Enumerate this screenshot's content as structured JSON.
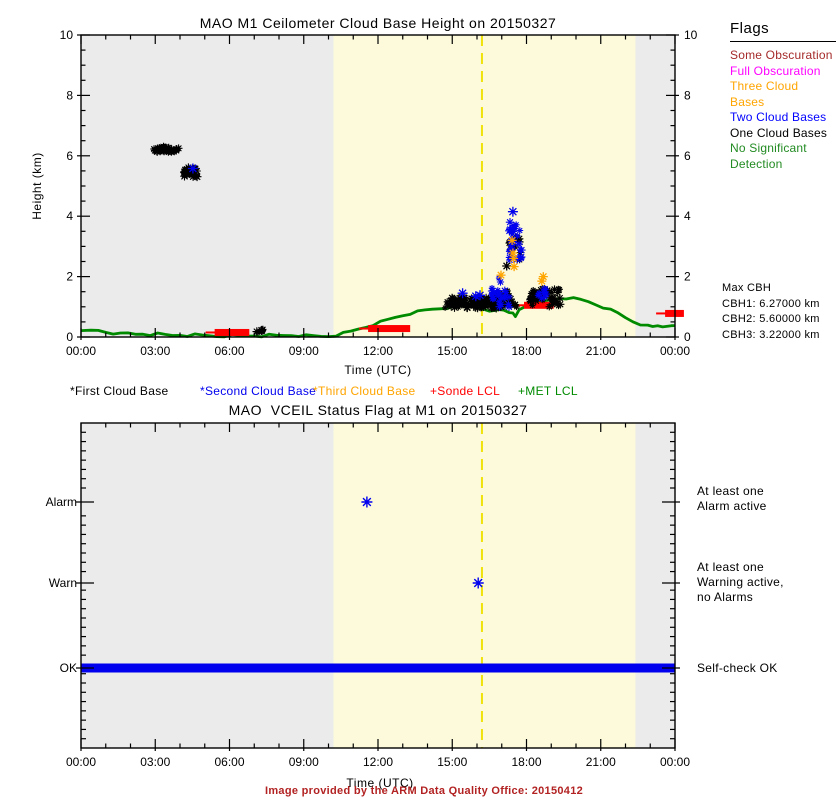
{
  "page": {
    "bg": "#ffffff"
  },
  "footer": {
    "text": "Image provided by the ARM Data Quality Office: 20150412",
    "color": "#b22222"
  },
  "colors": {
    "night_bg": "#ebebeb",
    "day_bg": "#fcfadb",
    "dashed_line": "#f0e20a",
    "axis": "#000000"
  },
  "flags_legend": {
    "title": "Flags",
    "items": [
      {
        "label": "Some Obscuration",
        "color": "#a52a2a"
      },
      {
        "label": "Full Obscuration",
        "color": "#ff00ff"
      },
      {
        "label": "Three Cloud Bases",
        "color": "#ffa500"
      },
      {
        "label": "Two Cloud Bases",
        "color": "#0000ff"
      },
      {
        "label": "One Cloud Bases",
        "color": "#000000"
      },
      {
        "label": "No Significant\n  Detection",
        "color": "#228b22"
      }
    ]
  },
  "chart_data": [
    {
      "type": "scatter",
      "title": "MAO M1 Ceilometer Cloud Base Height on 20150327",
      "xlabel": "Time (UTC)",
      "ylabel": "Height (km)",
      "xlim_hours": [
        0,
        24
      ],
      "ylim": [
        0,
        10
      ],
      "xticks_hours": [
        0,
        3,
        6,
        9,
        12,
        15,
        18,
        21,
        24
      ],
      "xticks": [
        "00:00",
        "03:00",
        "06:00",
        "09:00",
        "12:00",
        "15:00",
        "18:00",
        "21:00",
        "00:00"
      ],
      "yticks": [
        0,
        2,
        4,
        6,
        8,
        10
      ],
      "daylight_band_hours": [
        10.2,
        22.4
      ],
      "vline_hour": 16.2,
      "legend": [
        {
          "label": "*First Cloud Base",
          "color": "#000000"
        },
        {
          "label": "*Second Cloud Base",
          "color": "#0000ee"
        },
        {
          "label": "*Third Cloud Base",
          "color": "#ffa500"
        },
        {
          "label": "+Sonde LCL",
          "color": "#ff0000"
        },
        {
          "label": "+MET LCL",
          "color": "#008a00"
        }
      ],
      "max_cbh": {
        "title": "Max CBH",
        "lines": [
          "CBH1: 6.27000 km",
          "CBH2: 5.60000 km",
          "CBH3: 3.22000 km"
        ]
      },
      "first_cloud_base_clusters": [
        {
          "t": [
            2.95,
            3.45
          ],
          "h": [
            6.12,
            6.3
          ],
          "n": 24
        },
        {
          "t": [
            3.5,
            3.95
          ],
          "h": [
            6.1,
            6.28
          ],
          "n": 18
        },
        {
          "t": [
            4.15,
            4.72
          ],
          "h": [
            5.3,
            5.62
          ],
          "n": 28
        },
        {
          "t": [
            7.1,
            7.4
          ],
          "h": [
            0.16,
            0.3
          ],
          "n": 7
        },
        {
          "t": [
            14.7,
            17.0
          ],
          "h": [
            0.95,
            1.32
          ],
          "n": 120
        },
        {
          "t": [
            16.9,
            17.4
          ],
          "h": [
            1.0,
            1.55
          ],
          "n": 20
        },
        {
          "t": [
            17.35,
            17.6
          ],
          "h": [
            0.95,
            1.2
          ],
          "n": 8
        },
        {
          "t": [
            18.15,
            19.4
          ],
          "h": [
            1.0,
            1.6
          ],
          "n": 50
        },
        {
          "t": [
            17.3,
            17.75
          ],
          "h": [
            2.5,
            3.3
          ],
          "n": 10
        }
      ],
      "second_cloud_base_clusters": [
        {
          "t": [
            16.55,
            17.15
          ],
          "h": [
            1.25,
            2.05
          ],
          "n": 14
        },
        {
          "t": [
            17.3,
            17.8
          ],
          "h": [
            2.45,
            3.85
          ],
          "n": 28
        },
        {
          "t": [
            16.85,
            17.3
          ],
          "h": [
            0.95,
            1.55
          ],
          "n": 12
        },
        {
          "t": [
            18.45,
            18.8
          ],
          "h": [
            1.25,
            1.6
          ],
          "n": 8
        }
      ],
      "first_cloud_base_points": [
        [
          17.2,
          2.35
        ],
        [
          7.3,
          0.22
        ]
      ],
      "second_cloud_base_points": [
        [
          4.52,
          5.58
        ],
        [
          15.42,
          1.45
        ],
        [
          15.95,
          1.35
        ],
        [
          16.12,
          1.38
        ],
        [
          17.45,
          4.15
        ]
      ],
      "third_cloud_base_points": [
        [
          16.97,
          2.05
        ],
        [
          17.42,
          3.2
        ],
        [
          17.45,
          2.78
        ],
        [
          17.48,
          2.6
        ],
        [
          17.5,
          2.33
        ],
        [
          18.62,
          1.85
        ],
        [
          18.68,
          2.0
        ]
      ],
      "sonde_lcl_bars": [
        [
          5.4,
          6.8,
          0.15
        ],
        [
          11.6,
          13.3,
          0.28
        ],
        [
          17.9,
          19.1,
          1.05
        ],
        [
          23.6,
          24.36,
          0.78
        ]
      ],
      "met_lcl_line": [
        [
          0,
          0.18
        ],
        [
          0.4,
          0.21
        ],
        [
          0.7,
          0.22
        ],
        [
          1.0,
          0.17
        ],
        [
          1.3,
          0.13
        ],
        [
          1.6,
          0.1
        ],
        [
          1.9,
          0.12
        ],
        [
          2.2,
          0.09
        ],
        [
          2.5,
          0.11
        ],
        [
          2.8,
          0.08
        ],
        [
          3.1,
          0.1
        ],
        [
          3.4,
          0.07
        ],
        [
          3.7,
          0.05
        ],
        [
          4.0,
          0.07
        ],
        [
          4.3,
          0.05
        ],
        [
          4.6,
          0.07
        ],
        [
          4.9,
          0.05
        ],
        [
          5.2,
          0.04
        ],
        [
          5.5,
          0.03
        ],
        [
          5.8,
          0.04
        ],
        [
          6.1,
          0.05
        ],
        [
          6.4,
          0.04
        ],
        [
          6.7,
          0.03
        ],
        [
          7.0,
          0.05
        ],
        [
          7.3,
          0.04
        ],
        [
          7.6,
          0.06
        ],
        [
          7.9,
          0.04
        ],
        [
          8.2,
          0.05
        ],
        [
          8.5,
          0.06
        ],
        [
          8.8,
          0.05
        ],
        [
          9.1,
          0.04
        ],
        [
          9.4,
          0.03
        ],
        [
          9.7,
          0.02
        ],
        [
          10.0,
          0.03
        ],
        [
          10.3,
          0.06
        ],
        [
          10.6,
          0.12
        ],
        [
          10.9,
          0.18
        ],
        [
          11.2,
          0.26
        ],
        [
          11.5,
          0.33
        ],
        [
          11.8,
          0.41
        ],
        [
          12.1,
          0.49
        ],
        [
          12.4,
          0.57
        ],
        [
          12.7,
          0.65
        ],
        [
          13.0,
          0.72
        ],
        [
          13.3,
          0.78
        ],
        [
          13.6,
          0.83
        ],
        [
          13.9,
          0.88
        ],
        [
          14.2,
          0.92
        ],
        [
          14.5,
          0.95
        ],
        [
          14.8,
          0.98
        ],
        [
          15.1,
          1.0
        ],
        [
          15.4,
          1.02
        ],
        [
          15.7,
          1.02
        ],
        [
          16.0,
          0.99
        ],
        [
          16.3,
          0.94
        ],
        [
          16.5,
          0.82
        ],
        [
          16.7,
          0.86
        ],
        [
          16.9,
          0.91
        ],
        [
          17.1,
          0.9
        ],
        [
          17.3,
          0.84
        ],
        [
          17.45,
          0.76
        ],
        [
          17.55,
          0.66
        ],
        [
          17.7,
          0.9
        ],
        [
          17.9,
          1.0
        ],
        [
          18.1,
          1.06
        ],
        [
          18.4,
          1.12
        ],
        [
          18.7,
          1.18
        ],
        [
          19.0,
          1.24
        ],
        [
          19.3,
          1.29
        ],
        [
          19.6,
          1.29
        ],
        [
          19.9,
          1.27
        ],
        [
          20.2,
          1.23
        ],
        [
          20.5,
          1.17
        ],
        [
          20.8,
          1.08
        ],
        [
          21.1,
          0.99
        ],
        [
          21.4,
          0.89
        ],
        [
          21.7,
          0.78
        ],
        [
          22.0,
          0.64
        ],
        [
          22.3,
          0.52
        ],
        [
          22.6,
          0.43
        ],
        [
          22.9,
          0.36
        ],
        [
          23.1,
          0.33
        ],
        [
          23.3,
          0.37
        ],
        [
          23.5,
          0.35
        ],
        [
          23.7,
          0.39
        ],
        [
          23.85,
          0.34
        ],
        [
          24,
          0.36
        ]
      ]
    },
    {
      "type": "status",
      "title": "MAO  VCEIL Status Flag at M1 on 20150327",
      "xlabel": "Time (UTC)",
      "categories": [
        "Alarm",
        "Warn",
        "OK"
      ],
      "right_labels": [
        "At least one\n Alarm active",
        "At least one\n Warning active,\n no Alarms",
        "Self-check OK"
      ],
      "xticks_hours": [
        0,
        3,
        6,
        9,
        12,
        15,
        18,
        21,
        24
      ],
      "xticks": [
        "00:00",
        "03:00",
        "06:00",
        "09:00",
        "12:00",
        "15:00",
        "18:00",
        "21:00",
        "00:00"
      ],
      "daylight_band_hours": [
        10.2,
        22.4
      ],
      "vline_hour": 16.2,
      "alarm_hours": [
        11.55
      ],
      "warn_hours": [
        16.05
      ],
      "ok_segments_hours": [
        [
          0,
          24
        ]
      ],
      "marker_color": "#0000ee"
    }
  ]
}
